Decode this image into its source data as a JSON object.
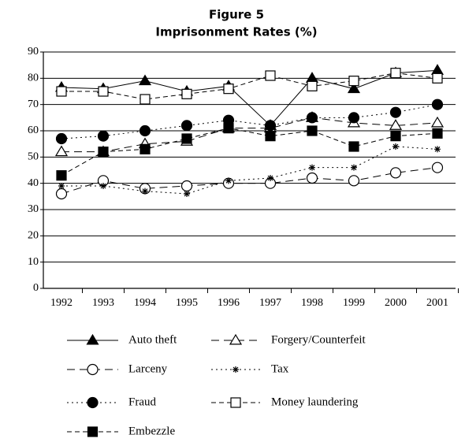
{
  "chart_data": {
    "type": "line",
    "title": "Figure 5",
    "subtitle": "Imprisonment Rates (%)",
    "categories": [
      "1992",
      "1993",
      "1994",
      "1995",
      "1996",
      "1997",
      "1998",
      "1999",
      "2000",
      "2001"
    ],
    "ylim": [
      0,
      90
    ],
    "yticks": [
      0,
      10,
      20,
      30,
      40,
      50,
      60,
      70,
      80,
      90
    ],
    "grid": true,
    "series": [
      {
        "name": "Auto theft",
        "color": "#000000",
        "marker": "triangle-filled",
        "line_style": "solid",
        "values": [
          76.5,
          76,
          79,
          75,
          77,
          62,
          80,
          76,
          82,
          83
        ]
      },
      {
        "name": "Forgery/Counterfeit",
        "color": "#000000",
        "marker": "triangle-open",
        "line_style": "long-dash",
        "values": [
          52,
          52,
          55,
          56,
          61,
          61,
          65,
          63,
          62,
          63
        ]
      },
      {
        "name": "Larceny",
        "color": "#000000",
        "marker": "circle-open",
        "line_style": "long-dash",
        "values": [
          36,
          41,
          38,
          39,
          40,
          40,
          42,
          41,
          44,
          46
        ]
      },
      {
        "name": "Tax",
        "color": "#000000",
        "marker": "asterisk",
        "line_style": "dotted",
        "values": [
          39,
          39,
          37,
          36,
          41,
          42,
          46,
          46,
          54,
          53
        ]
      },
      {
        "name": "Fraud",
        "color": "#000000",
        "marker": "circle-filled",
        "line_style": "dotted",
        "values": [
          57,
          58,
          60,
          62,
          64,
          62,
          65,
          65,
          67,
          70
        ]
      },
      {
        "name": "Money laundering",
        "color": "#000000",
        "marker": "square-open",
        "line_style": "dashed",
        "values": [
          75,
          75,
          72,
          74,
          76,
          81,
          77,
          79,
          82,
          80
        ]
      },
      {
        "name": "Embezzle",
        "color": "#000000",
        "marker": "square-filled",
        "line_style": "dashed",
        "values": [
          43,
          52,
          53,
          57,
          61,
          58,
          60,
          54,
          58,
          59
        ]
      }
    ]
  }
}
